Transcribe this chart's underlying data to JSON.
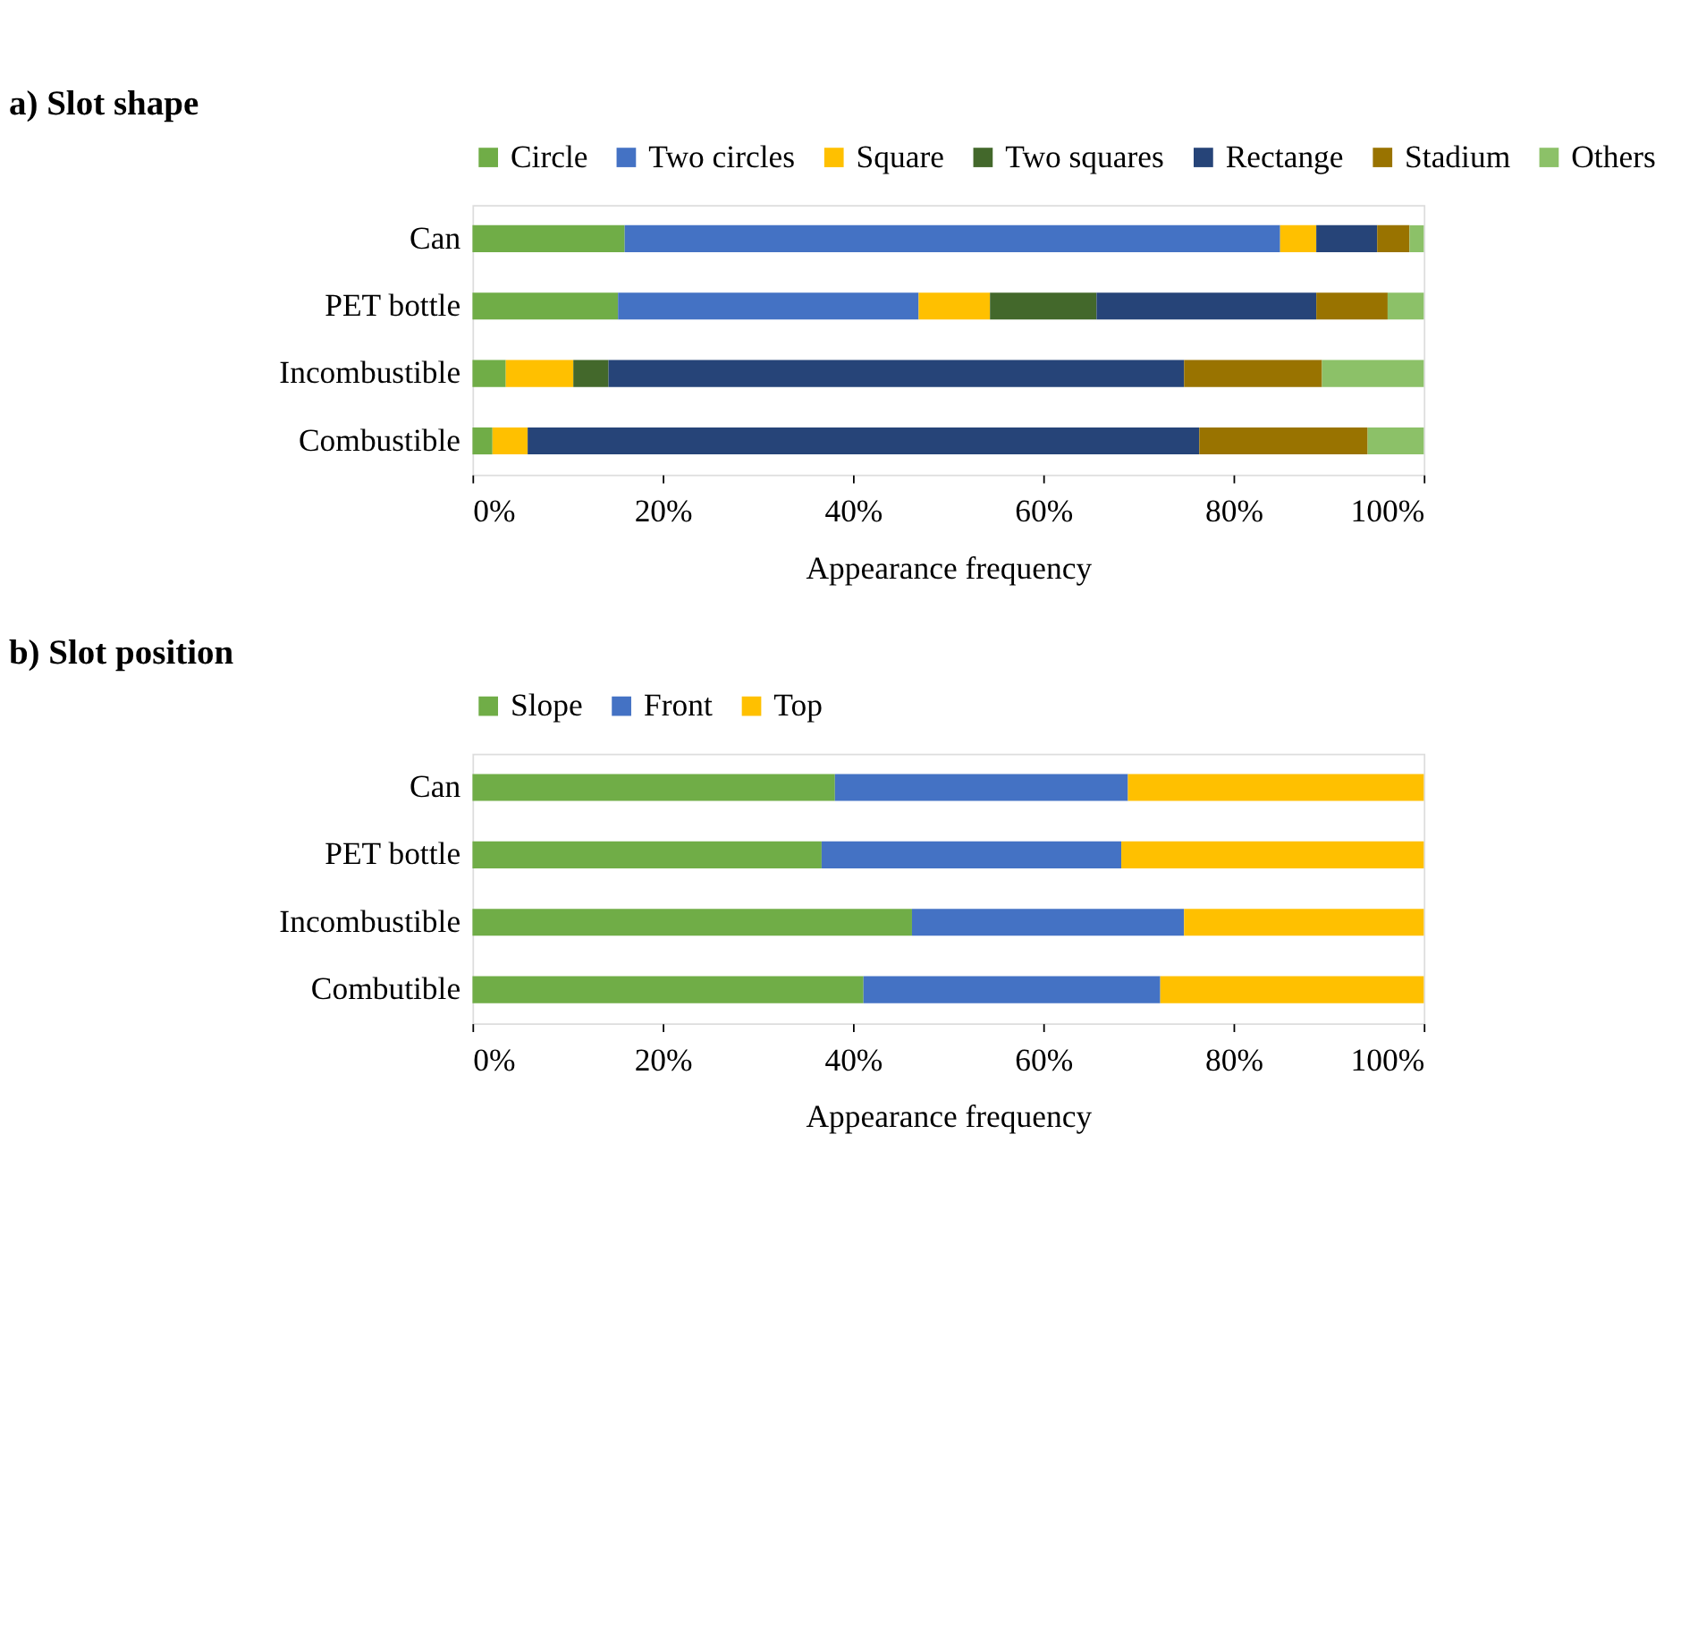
{
  "chart_data": [
    {
      "type": "bar",
      "orientation": "horizontal",
      "stacked": true,
      "title": "a)  Slot shape",
      "xlabel": "Appearance frequency",
      "categories": [
        "Can",
        "PET bottle",
        "Incombustible",
        "Combustible"
      ],
      "xlim": [
        0,
        100
      ],
      "xticks": [
        {
          "value": 0,
          "label": "0%"
        },
        {
          "value": 20,
          "label": "20%"
        },
        {
          "value": 40,
          "label": "40%"
        },
        {
          "value": 60,
          "label": "60%"
        },
        {
          "value": 80,
          "label": "80%"
        },
        {
          "value": 100,
          "label": "100%"
        }
      ],
      "legend": "top",
      "grid": false,
      "series": [
        {
          "name": "Circle",
          "color": "#70ad47",
          "values": [
            16.0,
            15.3,
            3.5,
            2.1
          ]
        },
        {
          "name": "Two circles",
          "color": "#4472c4",
          "values": [
            68.9,
            31.6,
            null,
            null
          ]
        },
        {
          "name": "Square",
          "color": "#ffc000",
          "values": [
            3.8,
            7.5,
            7.1,
            3.7
          ]
        },
        {
          "name": "Two squares",
          "color": "#43682b",
          "values": [
            null,
            11.2,
            3.7,
            null
          ]
        },
        {
          "name": "Rectange",
          "color": "#264478",
          "values": [
            6.4,
            23.1,
            60.5,
            70.6
          ]
        },
        {
          "name": "Stadium",
          "color": "#997300",
          "values": [
            3.4,
            7.5,
            14.5,
            17.7
          ]
        },
        {
          "name": "Others",
          "color": "#8cc168",
          "values": [
            1.5,
            3.8,
            10.7,
            5.9
          ]
        }
      ]
    },
    {
      "type": "bar",
      "orientation": "horizontal",
      "stacked": true,
      "title": "b) Slot position",
      "xlabel": "Appearance frequency",
      "categories": [
        "Can",
        "PET bottle",
        "Incombustible",
        "Combutible"
      ],
      "xlim": [
        0,
        100
      ],
      "xticks": [
        {
          "value": 0,
          "label": "0%"
        },
        {
          "value": 20,
          "label": "20%"
        },
        {
          "value": 40,
          "label": "40%"
        },
        {
          "value": 60,
          "label": "60%"
        },
        {
          "value": 80,
          "label": "80%"
        },
        {
          "value": 100,
          "label": "100%"
        }
      ],
      "legend": "top",
      "grid": false,
      "series": [
        {
          "name": "Slope",
          "color": "#70ad47",
          "values": [
            38.1,
            36.7,
            46.2,
            41.1
          ]
        },
        {
          "name": "Front",
          "color": "#4472c4",
          "values": [
            30.8,
            31.5,
            28.6,
            31.2
          ]
        },
        {
          "name": "Top",
          "color": "#ffc000",
          "values": [
            31.1,
            31.8,
            25.2,
            27.7
          ]
        }
      ]
    }
  ]
}
